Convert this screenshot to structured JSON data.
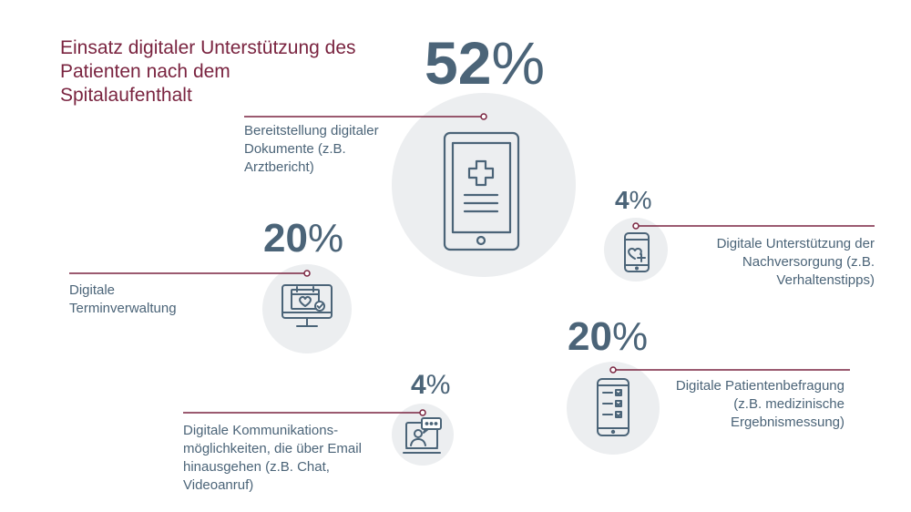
{
  "title": "Einsatz digitaler Unterstützung des Patienten nach dem Spitalaufenthalt",
  "colors": {
    "title": "#7a2440",
    "text": "#4b6478",
    "line": "#7a2440",
    "circle": "#eceef0",
    "icon": "#4b6478"
  },
  "chart_data": {
    "type": "infographic",
    "items": [
      {
        "number": "52",
        "symbol": "%",
        "value": 52,
        "label": "Bereitstellung digitaler Dokumente (z.B. Arztbericht)",
        "icon": "tablet-medical-icon"
      },
      {
        "number": "20",
        "symbol": "%",
        "value": 20,
        "label": "Digitale Terminverwaltung",
        "icon": "monitor-calendar-icon"
      },
      {
        "number": "4",
        "symbol": "%",
        "value": 4,
        "label": "Digitale Unterstützung der Nachversorgung (z.B. Verhaltenstipps)",
        "icon": "phone-heart-icon"
      },
      {
        "number": "20",
        "symbol": "%",
        "value": 20,
        "label": "Digitale Patientenbefragung (z.B. medizinische Ergebnismessung)",
        "icon": "phone-checklist-icon"
      },
      {
        "number": "4",
        "symbol": "%",
        "value": 4,
        "label": "Digitale Kommunikations-möglichkeiten, die über Email hinausgehen (z.B. Chat, Videoanruf)",
        "icon": "laptop-chat-icon"
      }
    ]
  }
}
